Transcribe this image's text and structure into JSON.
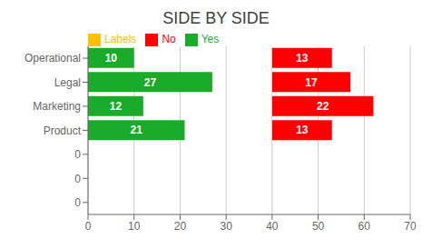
{
  "chart_data": {
    "type": "bar",
    "orientation": "horizontal",
    "title": "SIDE BY SIDE",
    "categories": [
      "Operational",
      "Legal",
      "Marketing",
      "Product",
      "0",
      "0",
      "0"
    ],
    "series": [
      {
        "name": "Yes",
        "color": "#1aab2a",
        "values": [
          10,
          27,
          12,
          21,
          0,
          0,
          0
        ]
      },
      {
        "name": "No",
        "color": "#ff0000",
        "values": [
          13,
          17,
          22,
          13,
          0,
          0,
          0
        ],
        "offset": 40
      },
      {
        "name": "Labels",
        "color": "#ffc000",
        "values": [
          null,
          null,
          null,
          null,
          null,
          null,
          null
        ]
      }
    ],
    "xlim": [
      0,
      70
    ],
    "xticks": [
      0,
      10,
      20,
      30,
      40,
      50,
      60,
      70
    ],
    "grid": true,
    "legend": "top left",
    "data_labels": true
  }
}
